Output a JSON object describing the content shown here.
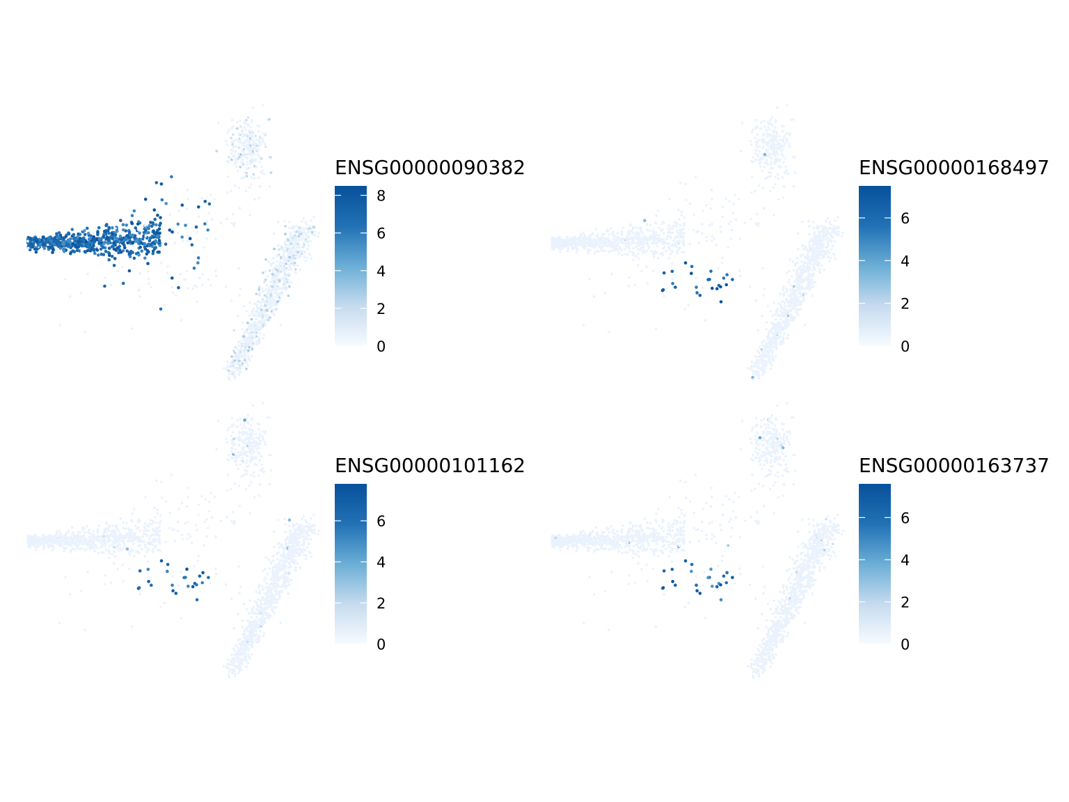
{
  "chart_data": [
    {
      "type": "scatter",
      "legend_title": "ENSG00000090382",
      "color_scale": {
        "min": 0,
        "max": 8.5,
        "ticks": [
          0,
          2,
          4,
          6,
          8
        ],
        "low_color": "#F7FBFF",
        "high_color": "#08519C"
      },
      "axes_visible": false,
      "grid": false,
      "legend_position": "right",
      "expressing_cluster": "left-arm",
      "expressing_fraction": 0.9,
      "expression_level": [
        5.2,
        8.5
      ]
    },
    {
      "type": "scatter",
      "legend_title": "ENSG00000168497",
      "color_scale": {
        "min": 0,
        "max": 7.5,
        "ticks": [
          0,
          2,
          4,
          6
        ],
        "low_color": "#F7FBFF",
        "high_color": "#08519C"
      },
      "axes_visible": false,
      "grid": false,
      "legend_position": "right",
      "expressing_cluster": "small-center",
      "expressing_fraction": 1.0,
      "expression_level": [
        5.0,
        7.5
      ]
    },
    {
      "type": "scatter",
      "legend_title": "ENSG00000101162",
      "color_scale": {
        "min": 0,
        "max": 7.8,
        "ticks": [
          0,
          2,
          4,
          6
        ],
        "low_color": "#F7FBFF",
        "high_color": "#08519C"
      },
      "axes_visible": false,
      "grid": false,
      "legend_position": "right",
      "expressing_cluster": "small-center",
      "expressing_fraction": 1.0,
      "expression_level": [
        5.0,
        7.8
      ]
    },
    {
      "type": "scatter",
      "legend_title": "ENSG00000163737",
      "color_scale": {
        "min": 0,
        "max": 7.6,
        "ticks": [
          0,
          2,
          4,
          6
        ],
        "low_color": "#F7FBFF",
        "high_color": "#08519C"
      },
      "axes_visible": false,
      "grid": false,
      "legend_position": "right",
      "expressing_cluster": "small-center",
      "expressing_fraction": 1.0,
      "expression_level": [
        4.5,
        7.6
      ]
    }
  ]
}
